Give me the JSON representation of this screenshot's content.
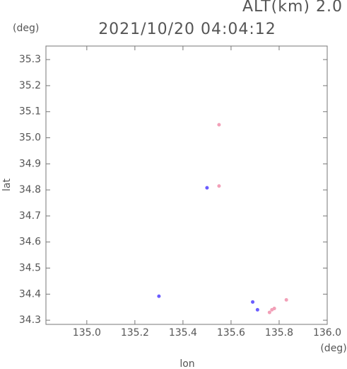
{
  "chart_data": {
    "type": "scatter",
    "title": "2021/10/20 04:04:12",
    "subtitle": "ALT(km) 2.0",
    "y_unit": "(deg)",
    "x_unit": "(deg)",
    "x_label": "lon",
    "y_label": "lat",
    "xlim": [
      134.83,
      136.0
    ],
    "ylim": [
      34.284,
      35.352
    ],
    "xticks": [
      {
        "value": 135.0,
        "label": "135.0"
      },
      135.2,
      135.4,
      135.6,
      135.8,
      {
        "value": 136.0,
        "label": "136.0"
      }
    ],
    "yticks": [
      34.3,
      34.4,
      34.5,
      34.6,
      34.7,
      34.8,
      34.9,
      {
        "value": 35.0,
        "label": "35.0"
      },
      35.1,
      35.2,
      35.3
    ],
    "series": [
      {
        "color": "#f2a0b8",
        "x": [
          135.55,
          135.55,
          135.77,
          135.76,
          135.78,
          135.83
        ],
        "values": [
          35.05,
          34.815,
          34.34,
          34.33,
          34.345,
          34.378
        ]
      },
      {
        "color": "#6a5cff",
        "x": [
          135.5,
          135.3,
          135.69,
          135.71
        ],
        "values": [
          34.808,
          34.392,
          34.37,
          34.34
        ]
      }
    ]
  }
}
